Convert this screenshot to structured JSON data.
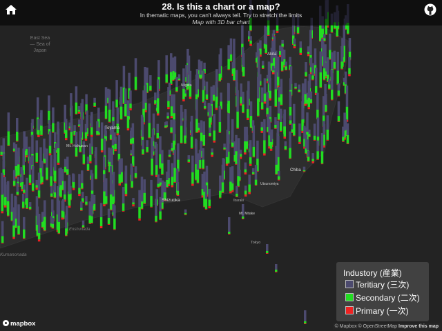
{
  "header": {
    "title": "28. Is this a chart or a map?",
    "subtitle": "In thematic maps, you can't always tell. Try to stretch the limits",
    "caption": "Map with 3D bar chart"
  },
  "icons": {
    "home": "home-icon",
    "github": "github-icon"
  },
  "legend": {
    "title": "Industory (産業)",
    "items": [
      {
        "label": "Teritiary (三次)",
        "color": "#4c4a6e"
      },
      {
        "label": "Secondary (二次)",
        "color": "#22dd22"
      },
      {
        "label": "Primary (一次)",
        "color": "#ee2222"
      }
    ]
  },
  "map_labels": {
    "sea": [
      "East Sea",
      "— Sea of",
      "Japan"
    ],
    "places": [
      "Akita",
      "Toyama",
      "Niigata",
      "Shizuoka",
      "Tokyo",
      "Chiba",
      "Mt. Hakusan",
      "Mt. Mitake",
      "Enshunada",
      "Kumanonada",
      "Ibaraki",
      "Utsunomiya"
    ]
  },
  "logo": "mapbox",
  "attribution": {
    "mapbox": "© Mapbox",
    "osm": "© OpenStreetMap",
    "improve": "Improve this map"
  },
  "colors": {
    "teritiary": "#4c4a6e",
    "secondary": "#22dd22",
    "primary": "#ee2222",
    "background": "#232323"
  }
}
